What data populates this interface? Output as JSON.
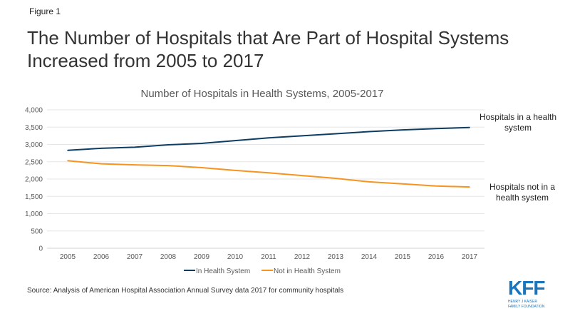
{
  "figure_label": "Figure 1",
  "headline": "The Number of Hospitals that Are Part of Hospital Systems Increased from 2005 to 2017",
  "source": "Source: Analysis of American Hospital Association Annual Survey data 2017 for community hospitals",
  "logo": {
    "text": "KFF",
    "subtext1": "HENRY J KAISER",
    "subtext2": "FAMILY FOUNDATION",
    "color": "#1a75bc"
  },
  "chart_data": {
    "type": "line",
    "title": "Number of Hospitals in Health Systems, 2005-2017",
    "x": [
      "2005",
      "2006",
      "2007",
      "2008",
      "2009",
      "2010",
      "2011",
      "2012",
      "2013",
      "2014",
      "2015",
      "2016",
      "2017"
    ],
    "ylim": [
      0,
      4000
    ],
    "yticks": [
      0,
      500,
      1000,
      1500,
      2000,
      2500,
      3000,
      3500,
      4000
    ],
    "ytick_labels": [
      "0",
      "500",
      "1,000",
      "1,500",
      "2,000",
      "2,500",
      "3,000",
      "3,500",
      "4,000"
    ],
    "grid": true,
    "legend_position": "bottom",
    "series": [
      {
        "name": "In Health System",
        "color": "#0d3d63",
        "annotation": [
          "Hospitals in a health",
          "system"
        ],
        "values": [
          2830,
          2890,
          2920,
          2990,
          3030,
          3110,
          3190,
          3250,
          3310,
          3370,
          3420,
          3460,
          3490
        ]
      },
      {
        "name": "Not in Health System",
        "color": "#f7941d",
        "annotation": [
          "Hospitals not in a",
          "health system"
        ],
        "values": [
          2530,
          2440,
          2410,
          2390,
          2330,
          2250,
          2180,
          2100,
          2020,
          1920,
          1860,
          1800,
          1770
        ]
      }
    ]
  }
}
